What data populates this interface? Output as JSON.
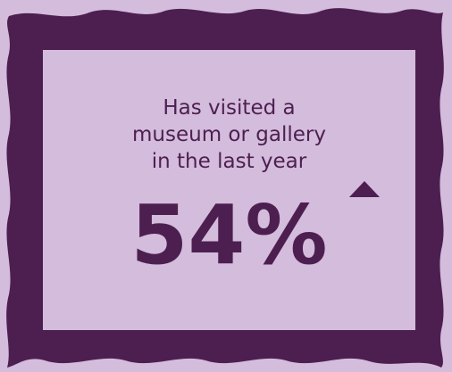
{
  "stat": {
    "label": "Has visited a\nmuseum or gallery\nin the last year",
    "value": "54%",
    "trend": "up"
  },
  "colors": {
    "frame": "#4d1f50",
    "background": "#d4bcdc",
    "text": "#4d1f50"
  },
  "icons": {
    "trend_icon": "up-triangle-icon"
  }
}
